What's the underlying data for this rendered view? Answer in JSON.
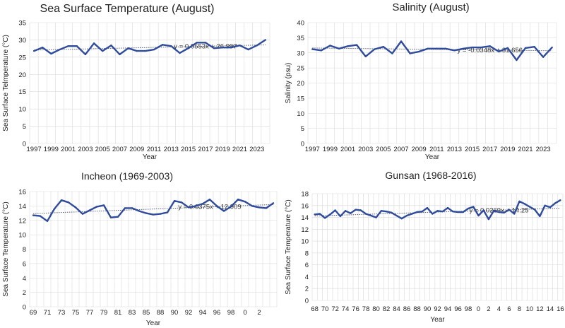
{
  "chart_data": [
    {
      "id": "sst-august",
      "type": "line",
      "title": "Sea Surface Temperature (August)",
      "xlabel": "Year",
      "ylabel": "Sea Surface Telmperature (°C)",
      "x": [
        "1997",
        "1998",
        "1999",
        "2000",
        "2001",
        "2002",
        "2003",
        "2004",
        "2005",
        "2006",
        "2007",
        "2008",
        "2009",
        "2010",
        "2011",
        "2012",
        "2013",
        "2014",
        "2015",
        "2016",
        "2017",
        "2018",
        "2019",
        "2020",
        "2021",
        "2022",
        "2023",
        "2024"
      ],
      "x_tick_labels": [
        "1997",
        "1999",
        "2001",
        "2003",
        "2005",
        "2007",
        "2009",
        "2011",
        "2013",
        "2015",
        "2017",
        "2019",
        "2021",
        "2023"
      ],
      "y_ticks": [
        0,
        5,
        10,
        15,
        20,
        25,
        30,
        35
      ],
      "ylim": [
        0,
        35
      ],
      "grid": true,
      "series": [
        {
          "values": [
            26.8,
            27.8,
            26.0,
            27.2,
            28.2,
            28.2,
            25.8,
            29.0,
            26.8,
            28.4,
            25.8,
            27.6,
            26.8,
            26.8,
            27.2,
            28.6,
            28.2,
            26.2,
            27.6,
            29.2,
            29.2,
            27.6,
            27.8,
            27.8,
            28.4,
            27.2,
            28.4,
            30.0
          ],
          "color": "#2f4b9c"
        }
      ],
      "trendline": {
        "label": "y = 0.0553x + 26.997",
        "start": 27.05,
        "end": 28.55,
        "color": "#555f7a"
      }
    },
    {
      "id": "salinity-august",
      "type": "line",
      "title": "Salinity (August)",
      "xlabel": "Year",
      "ylabel": "Salinity (psu)",
      "x": [
        "1997",
        "1998",
        "1999",
        "2000",
        "2001",
        "2002",
        "2003",
        "2004",
        "2005",
        "2006",
        "2007",
        "2008",
        "2009",
        "2010",
        "2011",
        "2012",
        "2013",
        "2014",
        "2015",
        "2016",
        "2017",
        "2018",
        "2019",
        "2020",
        "2021",
        "2022",
        "2023",
        "2024"
      ],
      "x_tick_labels": [
        "1997",
        "1999",
        "2001",
        "2003",
        "2005",
        "2007",
        "2009",
        "2011",
        "2013",
        "2015",
        "2017",
        "2019",
        "2021",
        "2023"
      ],
      "y_ticks": [
        0,
        5,
        10,
        15,
        20,
        25,
        30,
        35,
        40
      ],
      "ylim": [
        0,
        40
      ],
      "grid": true,
      "series": [
        {
          "values": [
            31.2,
            30.8,
            32.4,
            31.4,
            32.2,
            32.6,
            28.8,
            31.2,
            32.0,
            29.8,
            33.8,
            29.8,
            30.4,
            31.4,
            31.4,
            31.4,
            30.8,
            31.4,
            31.8,
            31.8,
            32.2,
            30.4,
            31.6,
            27.6,
            31.6,
            32.0,
            28.6,
            31.8
          ],
          "color": "#2f4b9c"
        }
      ],
      "trendline": {
        "label": "y = -0.0348x + 31.656",
        "start": 31.6,
        "end": 30.7,
        "color": "#555f7a"
      }
    },
    {
      "id": "incheon",
      "type": "line",
      "title": "Incheon (1969-2003)",
      "xlabel": "Year",
      "ylabel": "Sea Surface Temperature (°C)",
      "x": [
        "1969",
        "1970",
        "1971",
        "1972",
        "1973",
        "1974",
        "1975",
        "1976",
        "1977",
        "1978",
        "1979",
        "1980",
        "1981",
        "1982",
        "1983",
        "1984",
        "1985",
        "1986",
        "1987",
        "1988",
        "1989",
        "1990",
        "1991",
        "1992",
        "1993",
        "1994",
        "1995",
        "1996",
        "1997",
        "1998",
        "1999",
        "2000",
        "2001",
        "2002",
        "2003"
      ],
      "x_tick_labels": [
        "69",
        "71",
        "73",
        "75",
        "77",
        "79",
        "81",
        "83",
        "85",
        "88",
        "90",
        "92",
        "94",
        "96",
        "98",
        "0",
        "2"
      ],
      "y_ticks": [
        0,
        2,
        4,
        6,
        8,
        10,
        12,
        14,
        16
      ],
      "ylim": [
        0,
        16
      ],
      "grid": true,
      "series": [
        {
          "values": [
            12.7,
            12.6,
            11.9,
            13.6,
            14.8,
            14.5,
            13.8,
            12.9,
            13.4,
            13.9,
            14.1,
            12.4,
            12.5,
            13.7,
            13.7,
            13.3,
            13.0,
            12.8,
            12.9,
            13.1,
            14.7,
            14.5,
            13.8,
            14.0,
            14.3,
            14.9,
            14.0,
            13.3,
            13.9,
            14.9,
            14.6,
            14.0,
            13.8,
            13.7,
            14.4
          ],
          "color": "#2f4b9c"
        }
      ],
      "trendline": {
        "label": "y = 0.0375x + 12.909",
        "start": 12.95,
        "end": 14.2,
        "color": "#555f7a"
      }
    },
    {
      "id": "gunsan",
      "type": "line",
      "title": "Gunsan (1968-2016)",
      "xlabel": "Year",
      "ylabel": "Sea Surface Temperature (°C)",
      "x": [
        "1968",
        "1969",
        "1970",
        "1971",
        "1972",
        "1973",
        "1974",
        "1975",
        "1976",
        "1977",
        "1978",
        "1979",
        "1980",
        "1981",
        "1982",
        "1983",
        "1984",
        "1985",
        "1986",
        "1987",
        "1988",
        "1989",
        "1990",
        "1991",
        "1992",
        "1993",
        "1994",
        "1995",
        "1996",
        "1997",
        "1998",
        "1999",
        "2000",
        "2001",
        "2002",
        "2003",
        "2004",
        "2005",
        "2006",
        "2007",
        "2008",
        "2009",
        "2010",
        "2011",
        "2012",
        "2013",
        "2014",
        "2015",
        "2016"
      ],
      "x_tick_labels": [
        "68",
        "70",
        "72",
        "74",
        "76",
        "78",
        "80",
        "82",
        "84",
        "86",
        "88",
        "90",
        "92",
        "94",
        "96",
        "98",
        "0",
        "2",
        "4",
        "6",
        "8",
        "10",
        "12",
        "14",
        "16"
      ],
      "y_ticks": [
        0,
        2,
        4,
        6,
        8,
        10,
        12,
        14,
        16,
        18
      ],
      "ylim": [
        0,
        18
      ],
      "grid": true,
      "series": [
        {
          "values": [
            14.5,
            14.6,
            13.9,
            14.5,
            15.2,
            14.2,
            15.1,
            14.7,
            15.3,
            15.2,
            14.6,
            14.3,
            14.0,
            15.1,
            15.0,
            14.8,
            14.3,
            13.8,
            14.3,
            14.6,
            14.9,
            15.0,
            15.6,
            14.6,
            15.1,
            15.0,
            15.6,
            15.0,
            14.9,
            14.9,
            15.5,
            15.8,
            14.3,
            15.2,
            13.7,
            15.1,
            14.9,
            14.8,
            15.3,
            14.6,
            16.7,
            16.3,
            15.8,
            15.3,
            14.2,
            16.0,
            15.7,
            16.4,
            16.9
          ],
          "color": "#2f4b9c"
        }
      ],
      "trendline": {
        "label": "y = 0.0269x + 14.25",
        "start": 14.25,
        "end": 15.55,
        "color": "#555f7a"
      }
    }
  ]
}
